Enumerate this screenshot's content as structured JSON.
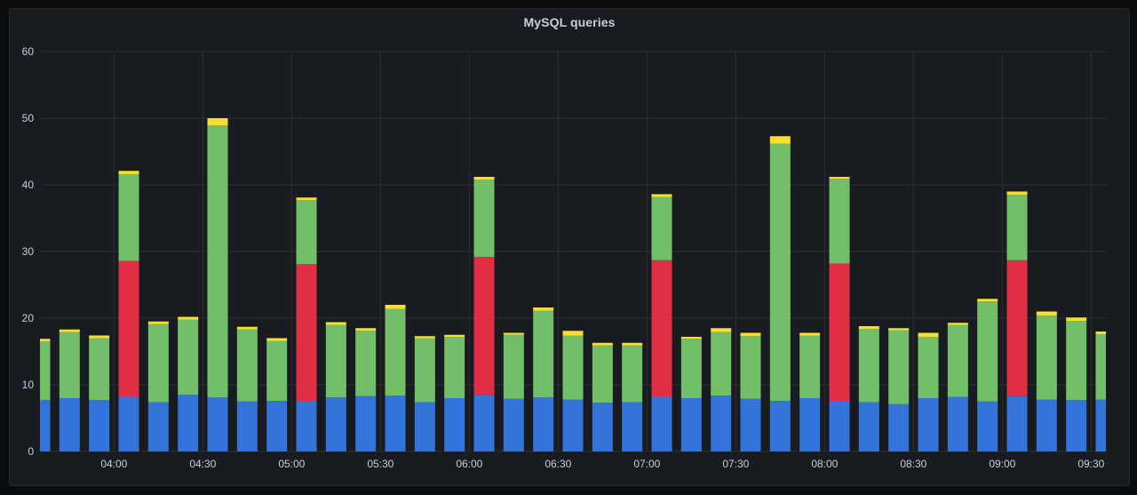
{
  "panel": {
    "title": "MySQL queries"
  },
  "chart_data": {
    "type": "bar",
    "stacked": true,
    "title": "MySQL queries",
    "xlabel": "",
    "ylabel": "",
    "ylim": [
      0,
      60
    ],
    "y_ticks": [
      0,
      10,
      20,
      30,
      40,
      50,
      60
    ],
    "x_tick_labels": [
      "04:00",
      "04:30",
      "05:00",
      "05:30",
      "06:00",
      "06:30",
      "07:00",
      "07:30",
      "08:00",
      "08:30",
      "09:00",
      "09:30"
    ],
    "x_range": [
      "03:35",
      "09:35"
    ],
    "bar_interval_minutes": 10,
    "first_bar_time": "03:35",
    "grid": true,
    "legend": "none",
    "colors": {
      "blue": "#3274d9",
      "red": "#e02f44",
      "green": "#73bf69",
      "yellow": "#fade2a",
      "grid": "#2c2f34",
      "text": "#ccccdc"
    },
    "bars": [
      {
        "time": "03:35",
        "blue": 7.7,
        "red": 0,
        "green": 8.8,
        "yellow": 0.4
      },
      {
        "time": "03:45",
        "blue": 8.0,
        "red": 0,
        "green": 9.9,
        "yellow": 0.4
      },
      {
        "time": "03:55",
        "blue": 7.7,
        "red": 0,
        "green": 9.3,
        "yellow": 0.4
      },
      {
        "time": "04:05",
        "blue": 8.2,
        "red": 20.4,
        "green": 13.0,
        "yellow": 0.5
      },
      {
        "time": "04:15",
        "blue": 7.4,
        "red": 0,
        "green": 11.7,
        "yellow": 0.4
      },
      {
        "time": "04:25",
        "blue": 8.5,
        "red": 0,
        "green": 11.3,
        "yellow": 0.4
      },
      {
        "time": "04:35",
        "blue": 8.1,
        "red": 0,
        "green": 40.8,
        "yellow": 1.1
      },
      {
        "time": "04:45",
        "blue": 7.5,
        "red": 0,
        "green": 10.8,
        "yellow": 0.4
      },
      {
        "time": "04:55",
        "blue": 7.6,
        "red": 0,
        "green": 9.0,
        "yellow": 0.4
      },
      {
        "time": "05:05",
        "blue": 7.6,
        "red": 20.5,
        "green": 9.6,
        "yellow": 0.4
      },
      {
        "time": "05:15",
        "blue": 8.1,
        "red": 0,
        "green": 10.9,
        "yellow": 0.4
      },
      {
        "time": "05:25",
        "blue": 8.3,
        "red": 0,
        "green": 9.8,
        "yellow": 0.4
      },
      {
        "time": "05:35",
        "blue": 8.4,
        "red": 0,
        "green": 13.0,
        "yellow": 0.6
      },
      {
        "time": "05:45",
        "blue": 7.4,
        "red": 0,
        "green": 9.6,
        "yellow": 0.3
      },
      {
        "time": "05:55",
        "blue": 8.0,
        "red": 0,
        "green": 9.2,
        "yellow": 0.3
      },
      {
        "time": "06:05",
        "blue": 8.5,
        "red": 20.7,
        "green": 11.6,
        "yellow": 0.4
      },
      {
        "time": "06:15",
        "blue": 7.9,
        "red": 0,
        "green": 9.6,
        "yellow": 0.3
      },
      {
        "time": "06:25",
        "blue": 8.1,
        "red": 0,
        "green": 13.0,
        "yellow": 0.5
      },
      {
        "time": "06:35",
        "blue": 7.8,
        "red": 0,
        "green": 9.6,
        "yellow": 0.7
      },
      {
        "time": "06:45",
        "blue": 7.3,
        "red": 0,
        "green": 8.6,
        "yellow": 0.4
      },
      {
        "time": "06:55",
        "blue": 7.4,
        "red": 0,
        "green": 8.5,
        "yellow": 0.4
      },
      {
        "time": "07:05",
        "blue": 8.2,
        "red": 20.5,
        "green": 9.5,
        "yellow": 0.4
      },
      {
        "time": "07:15",
        "blue": 8.0,
        "red": 0,
        "green": 8.9,
        "yellow": 0.3
      },
      {
        "time": "07:25",
        "blue": 8.4,
        "red": 0,
        "green": 9.5,
        "yellow": 0.6
      },
      {
        "time": "07:35",
        "blue": 7.9,
        "red": 0,
        "green": 9.4,
        "yellow": 0.5
      },
      {
        "time": "07:45",
        "blue": 7.6,
        "red": 0,
        "green": 38.6,
        "yellow": 1.1
      },
      {
        "time": "07:55",
        "blue": 8.0,
        "red": 0,
        "green": 9.4,
        "yellow": 0.4
      },
      {
        "time": "08:05",
        "blue": 7.6,
        "red": 20.6,
        "green": 12.7,
        "yellow": 0.3
      },
      {
        "time": "08:15",
        "blue": 7.4,
        "red": 0,
        "green": 11.0,
        "yellow": 0.4
      },
      {
        "time": "08:25",
        "blue": 7.1,
        "red": 0,
        "green": 11.1,
        "yellow": 0.3
      },
      {
        "time": "08:35",
        "blue": 8.0,
        "red": 0,
        "green": 9.2,
        "yellow": 0.6
      },
      {
        "time": "08:45",
        "blue": 8.2,
        "red": 0,
        "green": 10.8,
        "yellow": 0.3
      },
      {
        "time": "08:55",
        "blue": 7.5,
        "red": 0,
        "green": 15.0,
        "yellow": 0.4
      },
      {
        "time": "09:05",
        "blue": 8.3,
        "red": 20.4,
        "green": 9.8,
        "yellow": 0.5
      },
      {
        "time": "09:15",
        "blue": 7.8,
        "red": 0,
        "green": 12.6,
        "yellow": 0.6
      },
      {
        "time": "09:25",
        "blue": 7.7,
        "red": 0,
        "green": 11.9,
        "yellow": 0.5
      },
      {
        "time": "09:35",
        "blue": 7.8,
        "red": 0,
        "green": 9.8,
        "yellow": 0.4
      }
    ]
  }
}
